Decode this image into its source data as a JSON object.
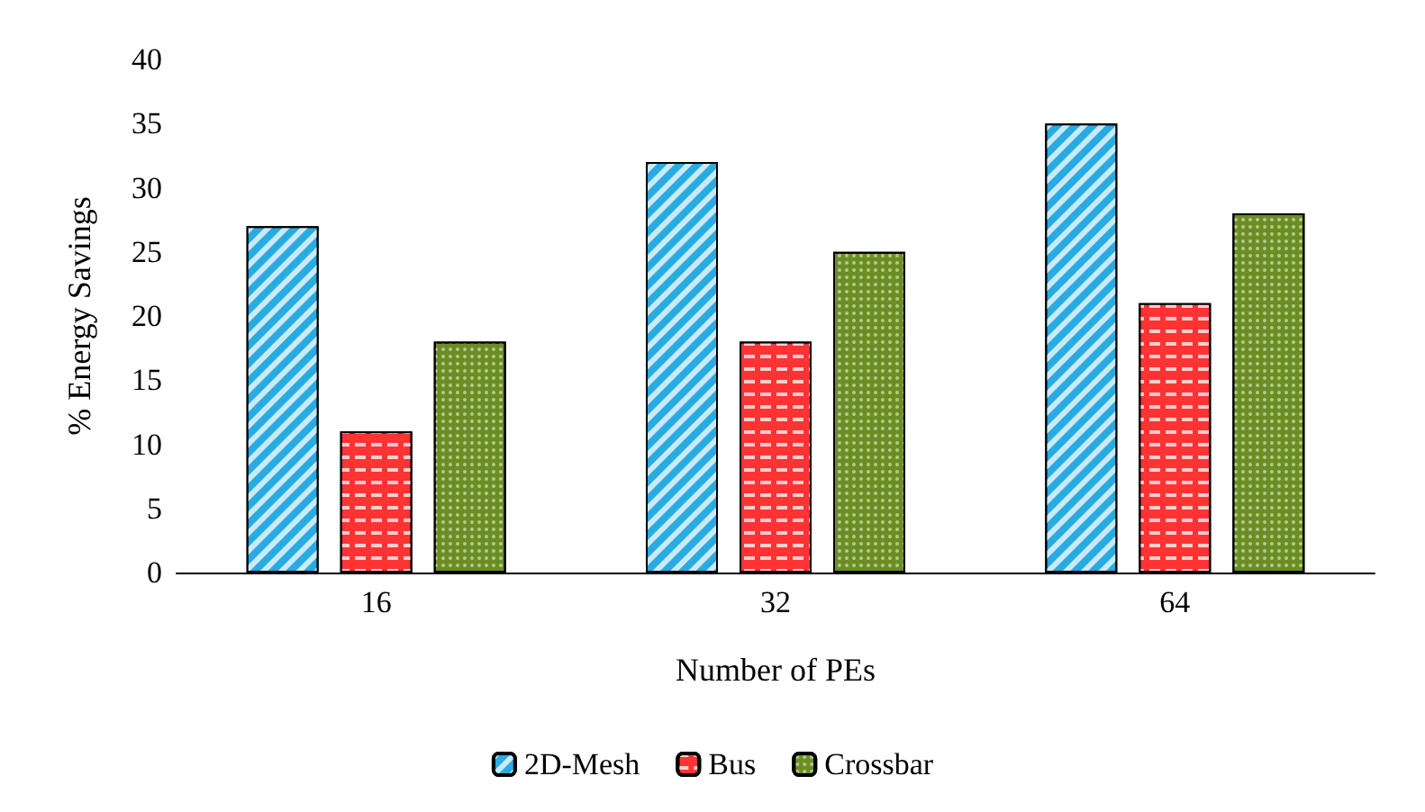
{
  "chart_data": {
    "type": "bar",
    "xlabel": "Number of PEs",
    "ylabel": "% Energy Savings",
    "categories": [
      "16",
      "32",
      "64"
    ],
    "series": [
      {
        "name": "2D-Mesh",
        "color": "#29abe2",
        "values": [
          27,
          32,
          35
        ]
      },
      {
        "name": "Bus",
        "color": "#ff3333",
        "values": [
          11,
          18,
          21
        ]
      },
      {
        "name": "Crossbar",
        "color": "#6b8e23",
        "values": [
          18,
          25,
          28
        ]
      }
    ],
    "ylim": [
      0,
      40
    ],
    "yticks": [
      0,
      5,
      10,
      15,
      20,
      25,
      30,
      35,
      40
    ],
    "grid": false,
    "legend": "bottom"
  }
}
